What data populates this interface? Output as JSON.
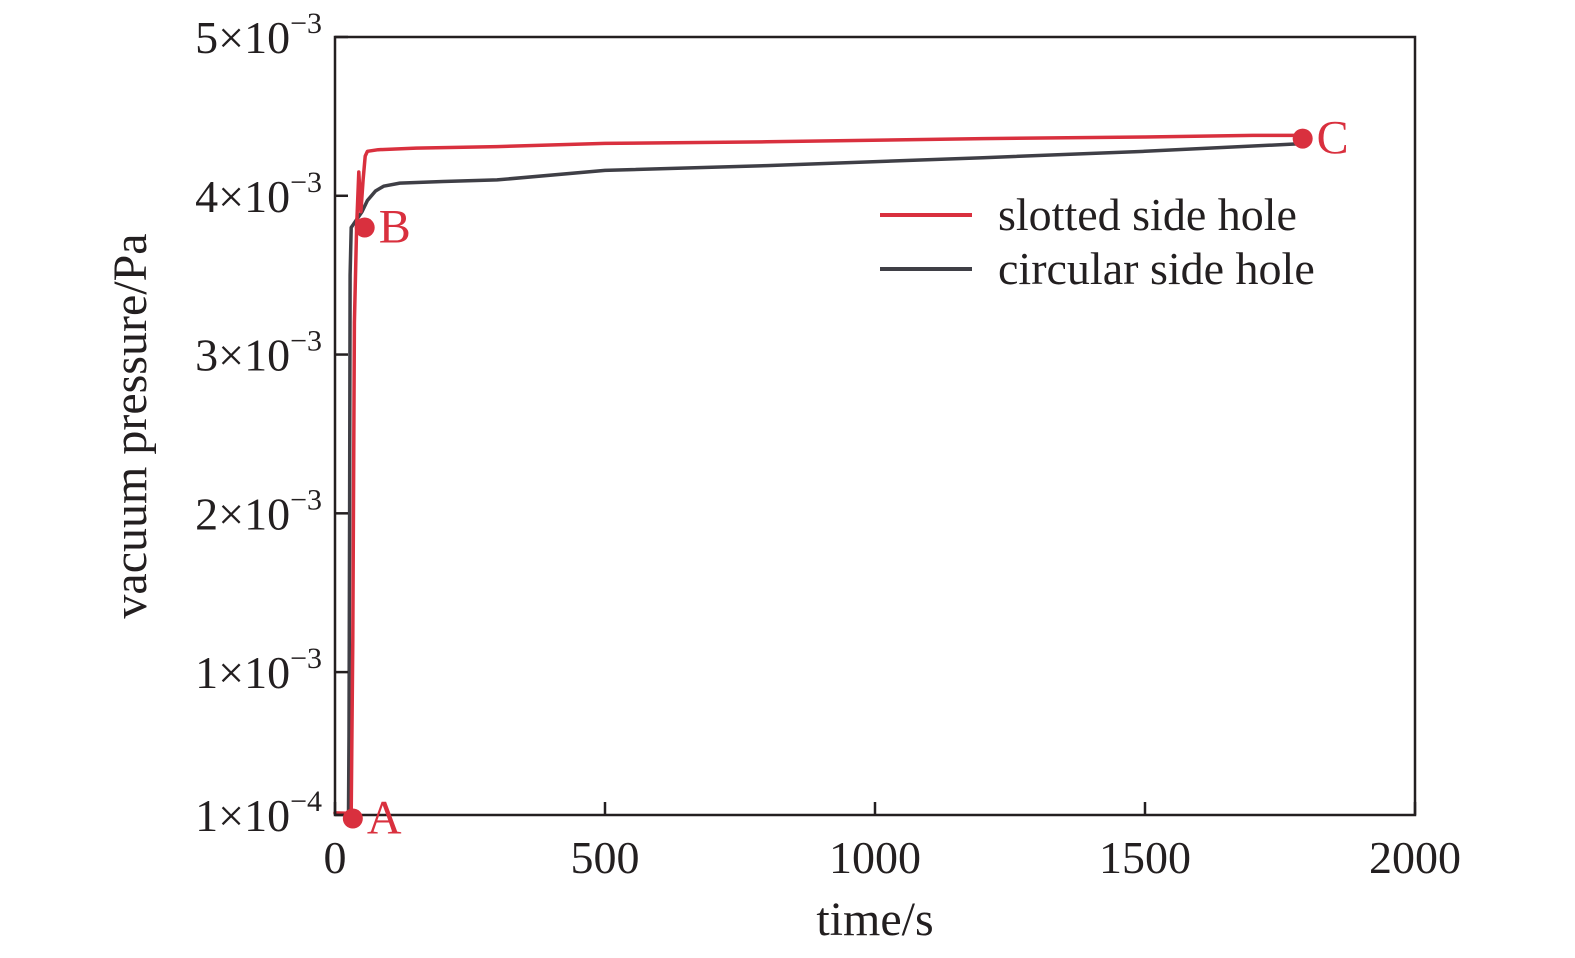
{
  "chart_data": {
    "type": "line",
    "title": "",
    "xlabel": "time/s",
    "ylabel": "vacuum pressure/Pa",
    "xlim": [
      0,
      2000
    ],
    "ylim": [
      0.0001,
      0.005
    ],
    "grid": false,
    "legend_position": "top-right",
    "x_ticks": [
      {
        "value": 0,
        "label": "0"
      },
      {
        "value": 500,
        "label": "500"
      },
      {
        "value": 1000,
        "label": "1000"
      },
      {
        "value": 1500,
        "label": "1500"
      },
      {
        "value": 2000,
        "label": "2000"
      }
    ],
    "y_ticks": [
      {
        "value": 0.0001,
        "mantissa": "1",
        "exponent": "−4"
      },
      {
        "value": 0.001,
        "mantissa": "1",
        "exponent": "−3"
      },
      {
        "value": 0.002,
        "mantissa": "2",
        "exponent": "−3"
      },
      {
        "value": 0.003,
        "mantissa": "3",
        "exponent": "−3"
      },
      {
        "value": 0.004,
        "mantissa": "4",
        "exponent": "−3"
      },
      {
        "value": 0.005,
        "mantissa": "5",
        "exponent": "−3"
      }
    ],
    "series": [
      {
        "name": "slotted side hole",
        "color": "#d9303e",
        "x": [
          0,
          30,
          33,
          36,
          40,
          44,
          48,
          52,
          56,
          60,
          80,
          150,
          300,
          500,
          800,
          1200,
          1500,
          1700,
          1800
        ],
        "y": [
          0.000113,
          0.00011,
          0.0012,
          0.0032,
          0.0038,
          0.00415,
          0.0039,
          0.0041,
          0.00425,
          0.00428,
          0.00429,
          0.0043,
          0.00431,
          0.00433,
          0.00434,
          0.00436,
          0.00437,
          0.00438,
          0.00438
        ]
      },
      {
        "name": "circular side hole",
        "color": "#3f3f46",
        "x": [
          25,
          26,
          27,
          28,
          30,
          34,
          40,
          50,
          60,
          75,
          90,
          120,
          200,
          300,
          500,
          800,
          1200,
          1500,
          1800
        ],
        "y": [
          0.00012,
          0.0006,
          0.002,
          0.0035,
          0.0038,
          0.00382,
          0.00385,
          0.0039,
          0.00397,
          0.00403,
          0.00406,
          0.00408,
          0.00409,
          0.0041,
          0.00416,
          0.00419,
          0.00424,
          0.00428,
          0.00433
        ]
      }
    ],
    "annotations": [
      {
        "label": "A",
        "x": 33,
        "y": 7.8e-05,
        "color": "#d9303e"
      },
      {
        "label": "B",
        "x": 55,
        "y": 0.0038,
        "color": "#d9303e"
      },
      {
        "label": "C",
        "x": 1792,
        "y": 0.00436,
        "color": "#d9303e"
      }
    ]
  }
}
